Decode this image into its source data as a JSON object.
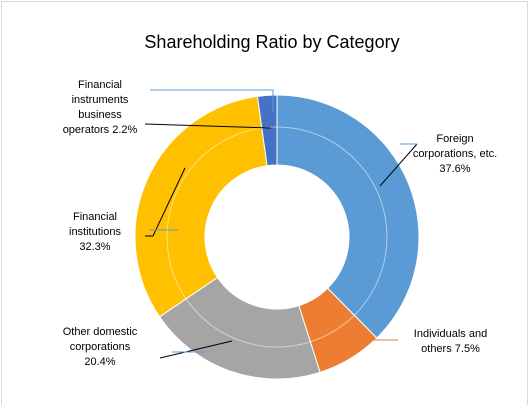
{
  "chart_data": {
    "type": "donut",
    "title": "Shareholding Ratio by Category",
    "categories": [
      "Foreign corporations, etc.",
      "Individuals and others",
      "Other domestic corporations",
      "Financial institutions",
      "Financial instruments business operators"
    ],
    "values": [
      37.6,
      7.5,
      20.4,
      32.3,
      2.2
    ],
    "value_labels": [
      "37.6%",
      "7.5%",
      "20.4%",
      "32.3%",
      "2.2%"
    ],
    "colors": [
      "#5b9bd5",
      "#ed7d31",
      "#a5a5a5",
      "#ffc000",
      "#4472c4"
    ]
  }
}
